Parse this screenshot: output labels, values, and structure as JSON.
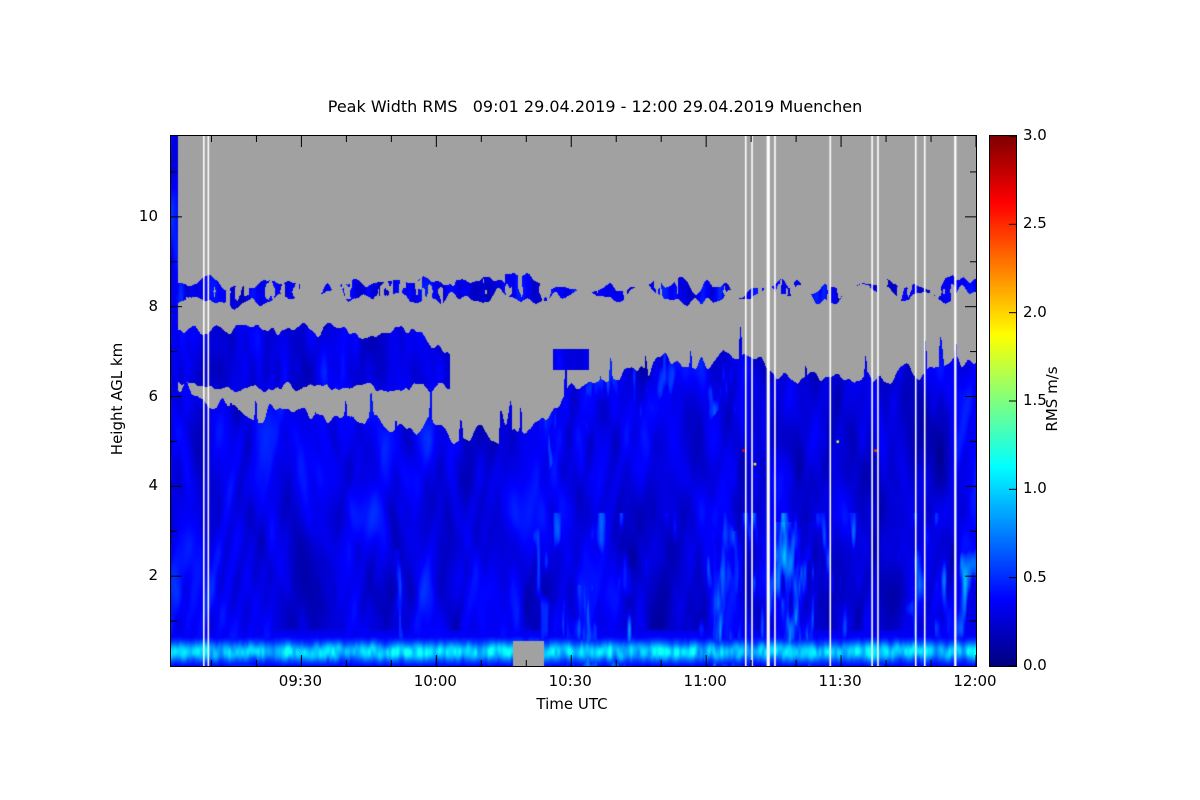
{
  "chart_data": {
    "type": "heatmap",
    "title": "Peak Width RMS",
    "time_range": "09:01 29.04.2019 - 12:00 29.04.2019",
    "station": "Muenchen",
    "title_full": "Peak Width RMS   09:01 29.04.2019 - 12:00 29.04.2019 Muenchen",
    "xlabel": "Time UTC",
    "ylabel": "Height AGL km",
    "colorbar": {
      "label": "RMS m/s",
      "min": 0.0,
      "max": 3.0,
      "ticks": [
        "0.0",
        "0.5",
        "1.0",
        "1.5",
        "2.0",
        "2.5",
        "3.0"
      ],
      "colormap": "jet"
    },
    "x_axis": {
      "start_label": "09:01",
      "end_label": "12:00",
      "duration_min": 179,
      "ticks": [
        {
          "label": "09:30",
          "min": 29
        },
        {
          "label": "10:00",
          "min": 59
        },
        {
          "label": "10:30",
          "min": 89
        },
        {
          "label": "11:00",
          "min": 119
        },
        {
          "label": "11:30",
          "min": 149
        },
        {
          "label": "12:00",
          "min": 179
        }
      ],
      "minor_tick_step_min": 10
    },
    "y_axis": {
      "min_km": 0,
      "max_km": 11.8,
      "ticks": [
        2,
        4,
        6,
        8,
        10
      ],
      "minor_tick_step_km": 1
    },
    "colors": {
      "no_data": "#a1a1a1",
      "gap": "#ffffff",
      "frame": "#000000",
      "background": "#ffffff"
    },
    "clear_air_rms_range": [
      0.05,
      0.55
    ],
    "echo_top_profile": [
      [
        0,
        6.2
      ],
      [
        4,
        6.0
      ],
      [
        10,
        5.7
      ],
      [
        16,
        5.8
      ],
      [
        22,
        5.65
      ],
      [
        28,
        5.6
      ],
      [
        34,
        5.7
      ],
      [
        40,
        5.55
      ],
      [
        46,
        5.45
      ],
      [
        52,
        5.3
      ],
      [
        57,
        5.35
      ],
      [
        62,
        5.15
      ],
      [
        67,
        5.1
      ],
      [
        72,
        5.1
      ],
      [
        77,
        5.15
      ],
      [
        82,
        5.5
      ],
      [
        87,
        6.0
      ],
      [
        92,
        6.3
      ],
      [
        97,
        6.4
      ],
      [
        102,
        6.5
      ],
      [
        107,
        6.6
      ],
      [
        112,
        6.75
      ],
      [
        117,
        6.9
      ],
      [
        122,
        6.95
      ],
      [
        127,
        6.8
      ],
      [
        132,
        6.6
      ],
      [
        137,
        6.5
      ],
      [
        142,
        6.45
      ],
      [
        147,
        6.6
      ],
      [
        152,
        6.4
      ],
      [
        157,
        6.45
      ],
      [
        162,
        6.55
      ],
      [
        167,
        6.65
      ],
      [
        172,
        6.5
      ],
      [
        179,
        6.8
      ]
    ],
    "cloud_bands": {
      "upper": {
        "center_km": 8.35,
        "half_thickness_km": 0.28,
        "start_min": 0,
        "end_min": 179,
        "patchy": true,
        "rms_range": [
          0.1,
          0.55
        ]
      },
      "mid": {
        "base_km": 6.2,
        "top_km": 7.45,
        "start_min": 0,
        "end_min": 62,
        "taper_start_min": 55,
        "rms_range": [
          0.1,
          0.5
        ]
      },
      "remnant": {
        "base_km": 6.6,
        "top_km": 7.05,
        "start_min": 85,
        "end_min": 93
      }
    },
    "surface_layer": {
      "top_km": 0.8,
      "peak_height_km": 0.32,
      "rms_range": [
        0.4,
        1.3
      ]
    },
    "bright_columns": [
      {
        "start_min": 49.5,
        "end_min": 51.5,
        "top_km": 2.6,
        "boost": 0.9
      },
      {
        "start_min": 87,
        "end_min": 95,
        "top_km": 1.8,
        "boost": 0.7
      },
      {
        "start_min": 120,
        "end_min": 127,
        "top_km": 3.0,
        "boost": 0.8
      },
      {
        "start_min": 134,
        "end_min": 143,
        "top_km": 3.2,
        "boost": 1.1
      }
    ],
    "data_gaps_min": [
      {
        "time": "09:08",
        "min": 7.3
      },
      {
        "time": "09:09",
        "min": 8.3
      },
      {
        "time": "11:09",
        "min": 127.8
      },
      {
        "time": "11:10",
        "min": 129.2
      },
      {
        "time": "11:14",
        "min": 132.8,
        "width_min": 0.7
      },
      {
        "time": "11:15",
        "min": 134.3
      },
      {
        "time": "11:28",
        "min": 146.6
      },
      {
        "time": "11:37",
        "min": 155.9
      },
      {
        "time": "11:38",
        "min": 157.2
      },
      {
        "time": "11:47",
        "min": 165.6
      },
      {
        "time": "11:49",
        "min": 167.6
      },
      {
        "time": "11:56",
        "min": 174.4,
        "width_min": 0.5
      }
    ],
    "no_data_patches": [
      {
        "start_min": 76,
        "end_min": 83,
        "top_km": 0.55
      }
    ],
    "speckles": [
      {
        "min": 127.2,
        "km": 4.8,
        "rms": 2.7
      },
      {
        "min": 129.8,
        "km": 4.5,
        "rms": 1.9
      },
      {
        "min": 156.6,
        "km": 4.8,
        "rms": 2.4
      },
      {
        "min": 148.2,
        "km": 5.0,
        "rms": 1.7
      }
    ]
  }
}
